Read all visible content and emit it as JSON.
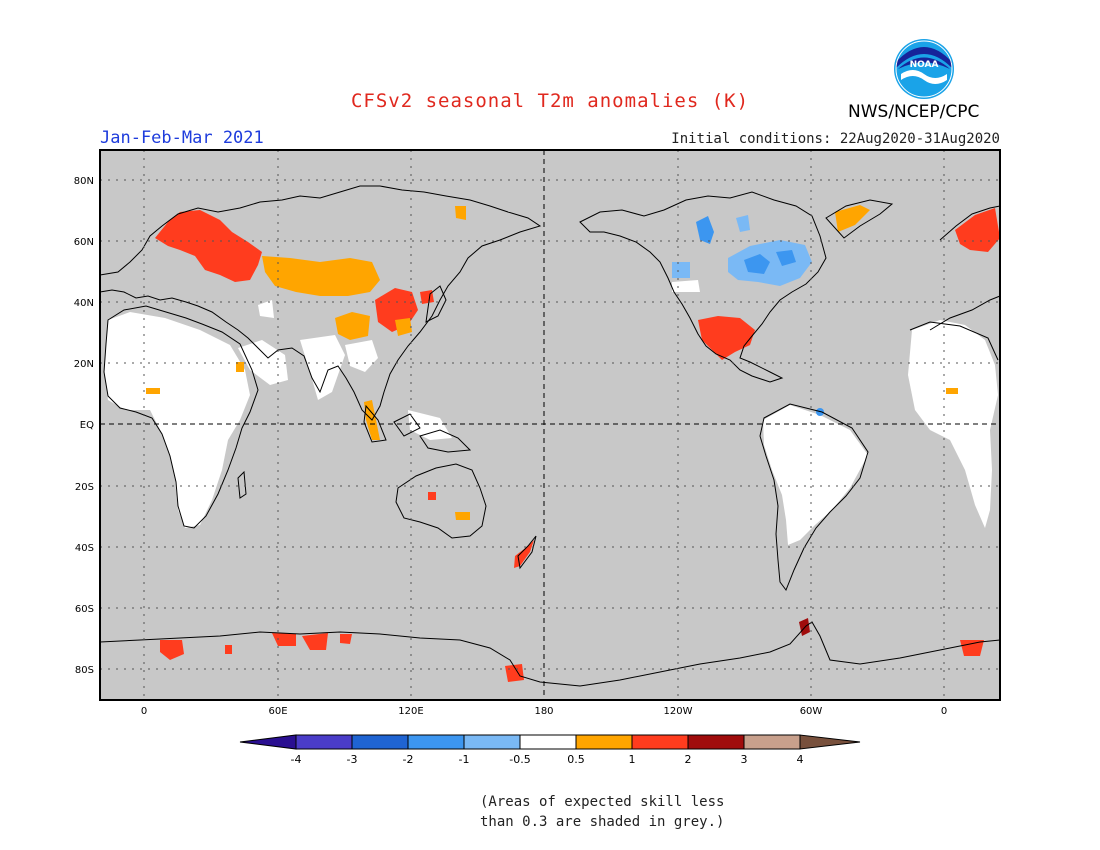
{
  "header": {
    "title": "CFSv2 seasonal T2m anomalies (K)",
    "period": "Jan-Feb-Mar 2021",
    "initial_conditions": "Initial conditions: 22Aug2020-31Aug2020",
    "agency": "NWS/NCEP/CPC",
    "logo_text": "NOAA"
  },
  "map": {
    "lat_labels": [
      "80N",
      "60N",
      "40N",
      "20N",
      "EQ",
      "20S",
      "40S",
      "60S",
      "80S"
    ],
    "lon_labels": [
      "0",
      "60E",
      "120E",
      "180",
      "120W",
      "60W",
      "0"
    ],
    "background_color": "#c8c8c8",
    "grid": "dotted"
  },
  "colorbar": {
    "tick_labels": [
      "-4",
      "-3",
      "-2",
      "-1",
      "-0.5",
      "0.5",
      "1",
      "2",
      "3",
      "4"
    ],
    "colors": [
      "#2a0f91",
      "#4a3cc8",
      "#1f64d2",
      "#3c96f0",
      "#7ab9f5",
      "#ffffff",
      "#ffa500",
      "#ff3c1e",
      "#a00c0c",
      "#c8a08c",
      "#78503c"
    ]
  },
  "footnote": {
    "line1": "(Areas of expected skill less",
    "line2": "than 0.3 are shaded in grey.)"
  }
}
